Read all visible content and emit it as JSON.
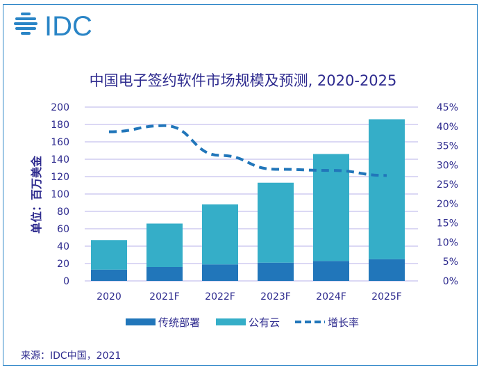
{
  "logo": {
    "text": "IDC",
    "color": "#2a85c6"
  },
  "chart_data": {
    "type": "bar",
    "title": "中国电子签约软件市场规模及预测, 2020-2025",
    "ylabel": "单位：百万美金",
    "categories": [
      "2020",
      "2021F",
      "2022F",
      "2023F",
      "2024F",
      "2025F"
    ],
    "ylim": [
      0,
      200
    ],
    "yticks": [
      "0",
      "20",
      "40",
      "60",
      "80",
      "100",
      "120",
      "140",
      "160",
      "180",
      "200"
    ],
    "y2lim": [
      0,
      45
    ],
    "y2ticks": [
      "0%",
      "5%",
      "10%",
      "15%",
      "20%",
      "25%",
      "30%",
      "35%",
      "40%",
      "45%"
    ],
    "stacked": true,
    "grid": true,
    "legend_position": "bottom",
    "series": [
      {
        "name": "传统部署",
        "type": "bar",
        "color": "#2176ba",
        "values": [
          13,
          16,
          19,
          21,
          23,
          25
        ]
      },
      {
        "name": "公有云",
        "type": "bar",
        "color": "#35aec8",
        "values": [
          34,
          50,
          69,
          92,
          123,
          161
        ]
      },
      {
        "name": "增长率",
        "type": "line",
        "style": "dashed",
        "axis": "right",
        "color": "#2176ba",
        "values": [
          38.6,
          40.2,
          32.5,
          28.9,
          28.6,
          27.3
        ]
      }
    ]
  },
  "source": "来源：IDC中国，2021"
}
